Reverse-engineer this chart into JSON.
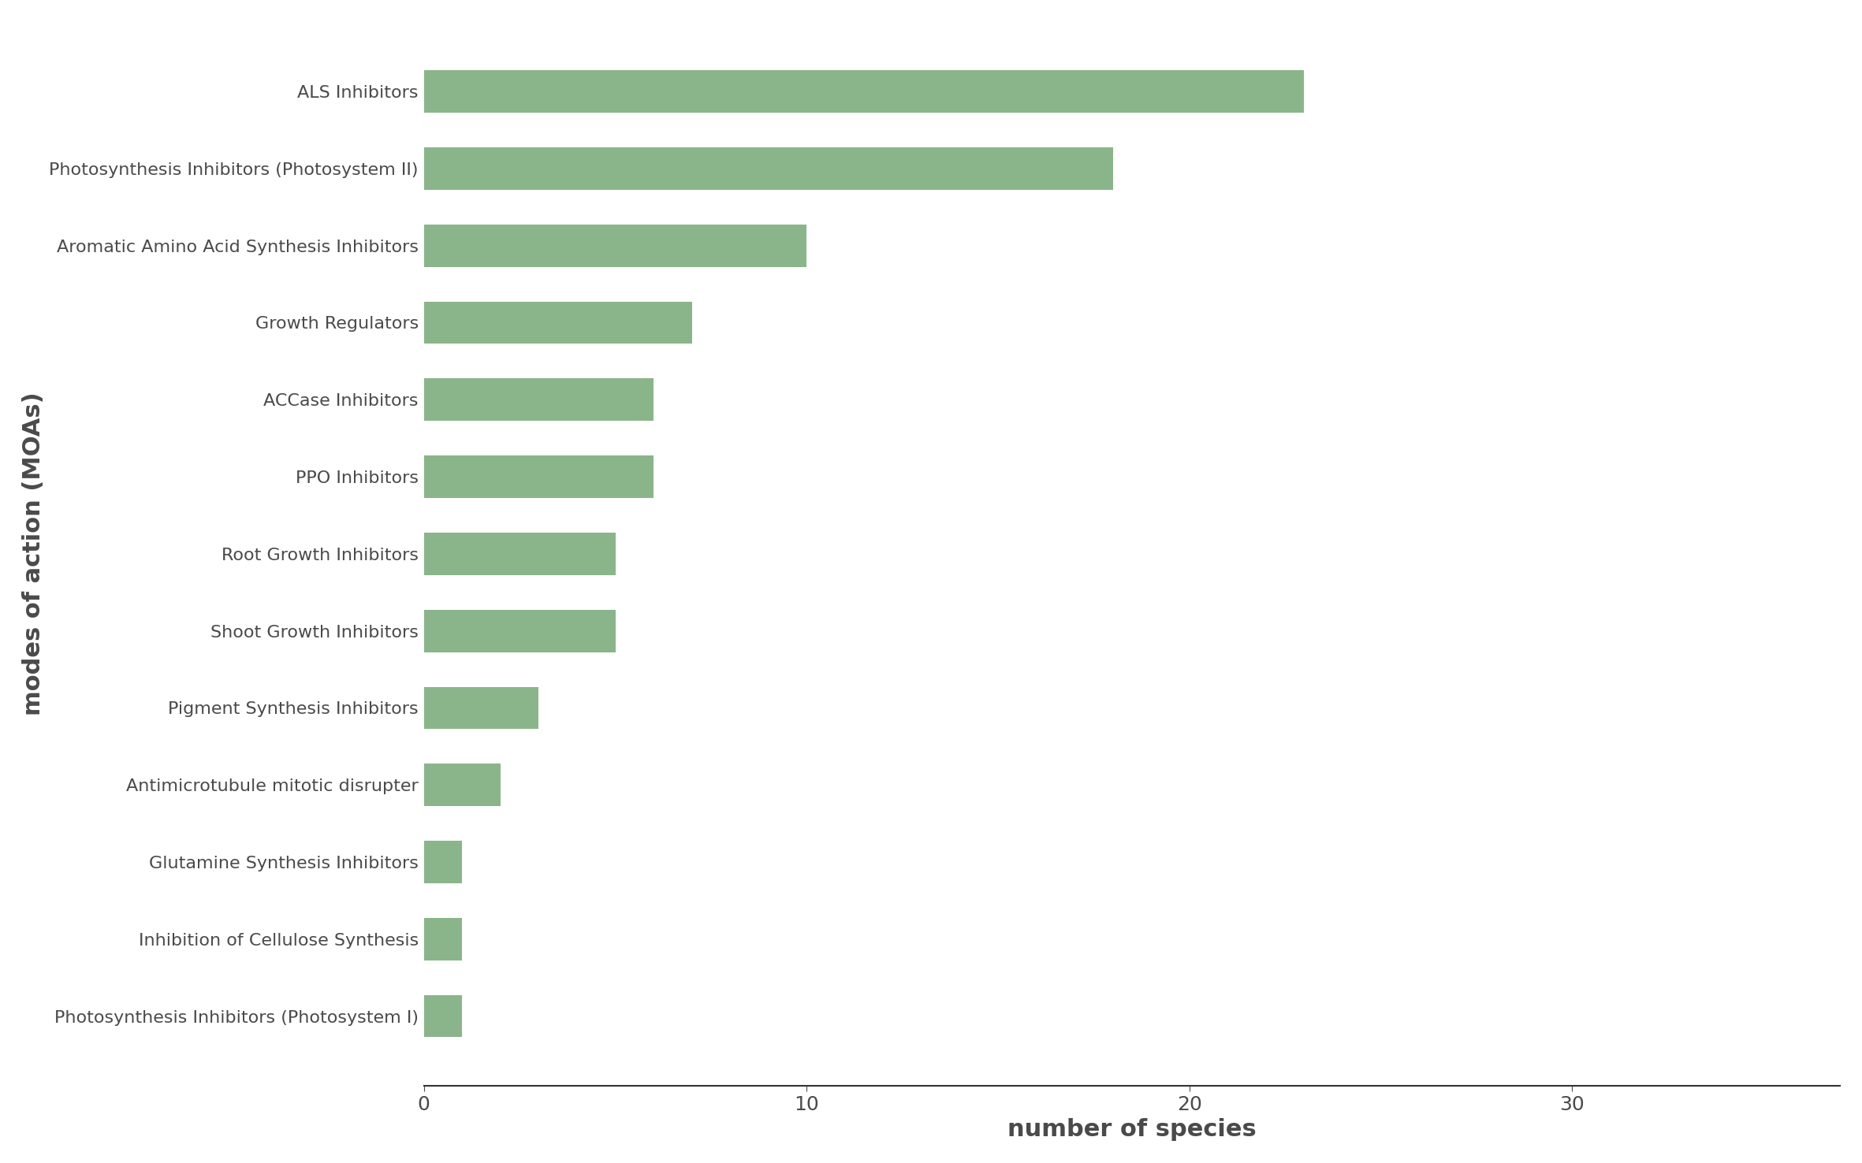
{
  "categories": [
    "ALS Inhibitors",
    "Photosynthesis Inhibitors (Photosystem II)",
    "Aromatic Amino Acid Synthesis Inhibitors",
    "Growth Regulators",
    "ACCase Inhibitors",
    "PPO Inhibitors",
    "Root Growth Inhibitors",
    "Shoot Growth Inhibitors",
    "Pigment Synthesis Inhibitors",
    "Antimicrotubule mitotic disrupter",
    "Glutamine Synthesis Inhibitors",
    "Inhibition of Cellulose Synthesis",
    "Photosynthesis Inhibitors (Photosystem I)"
  ],
  "values": [
    23,
    18,
    10,
    7,
    6,
    6,
    5,
    5,
    3,
    2,
    1,
    1,
    1
  ],
  "bar_color": "#8ab58a",
  "background_color": "#ffffff",
  "xlabel": "number of species",
  "ylabel": "modes of action (MOAs)",
  "xlim": [
    0,
    37
  ],
  "xticks": [
    0,
    10,
    20,
    30
  ],
  "xlabel_fontsize": 22,
  "ylabel_fontsize": 22,
  "tick_fontsize": 18,
  "label_fontsize": 16,
  "text_color": "#4a4a4a"
}
